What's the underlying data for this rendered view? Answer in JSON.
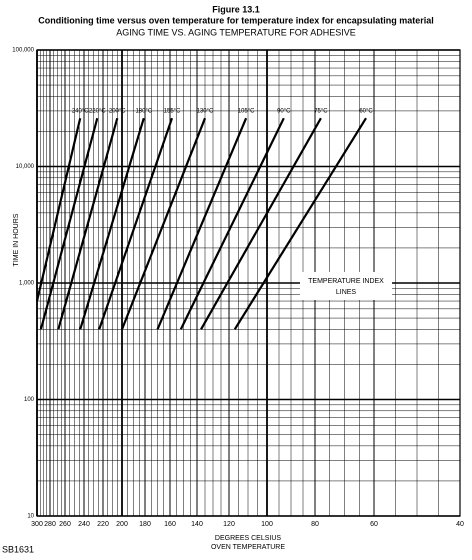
{
  "chart_data": {
    "type": "line",
    "title": "Figure 13.1",
    "subtitle": "Conditioning time versus oven temperature for temperature index for encapsulating material",
    "subtitle2": "AGING TIME VS. AGING TEMPERATURE FOR ADHESIVE",
    "y_label": "TIME IN HOURS",
    "x_label": [
      "DEGREES CELSIUS",
      "OVEN TEMPERATURE"
    ],
    "annotation": [
      "TEMPERATURE INDEX",
      "LINES"
    ],
    "footnote": "SB1631",
    "y_scale": "log",
    "x_scale": "reciprocal",
    "grid": true,
    "xlim": [
      300,
      40
    ],
    "xticks": [
      300,
      280,
      260,
      240,
      220,
      200,
      180,
      160,
      140,
      120,
      100,
      80,
      60,
      40
    ],
    "ylim": [
      10,
      100000
    ],
    "yticks": [
      {
        "value": 100000,
        "label": "100,000"
      },
      {
        "value": 10000,
        "label": "10,000"
      },
      {
        "value": 1000,
        "label": "1,000"
      },
      100,
      10
    ],
    "series": [
      {
        "name": "240°C",
        "color": "#000000",
        "x": [
          300,
          244
        ],
        "values": [
          700,
          26000
        ]
      },
      {
        "name": "220°C",
        "color": "#000000",
        "x": [
          294,
          226
        ],
        "values": [
          400,
          26000
        ]
      },
      {
        "name": "200°C",
        "color": "#000000",
        "x": [
          269,
          205
        ],
        "values": [
          400,
          26000
        ]
      },
      {
        "name": "180°C",
        "color": "#000000",
        "x": [
          244,
          181
        ],
        "values": [
          400,
          26000
        ]
      },
      {
        "name": "155°C",
        "color": "#000000",
        "x": [
          224,
          158.5
        ],
        "values": [
          400,
          26000
        ]
      },
      {
        "name": "130°C",
        "color": "#000000",
        "x": [
          200,
          135
        ],
        "values": [
          400,
          26000
        ]
      },
      {
        "name": "105°C",
        "color": "#000000",
        "x": [
          170,
          111
        ],
        "values": [
          400,
          26000
        ]
      },
      {
        "name": "90°C",
        "color": "#000000",
        "x": [
          152,
          93
        ],
        "values": [
          400,
          26000
        ]
      },
      {
        "name": "75°C",
        "color": "#000000",
        "x": [
          137.5,
          78
        ],
        "values": [
          400,
          26000
        ]
      },
      {
        "name": "60°C",
        "color": "#000000",
        "x": [
          117,
          62.7
        ],
        "values": [
          400,
          26000
        ]
      }
    ]
  }
}
